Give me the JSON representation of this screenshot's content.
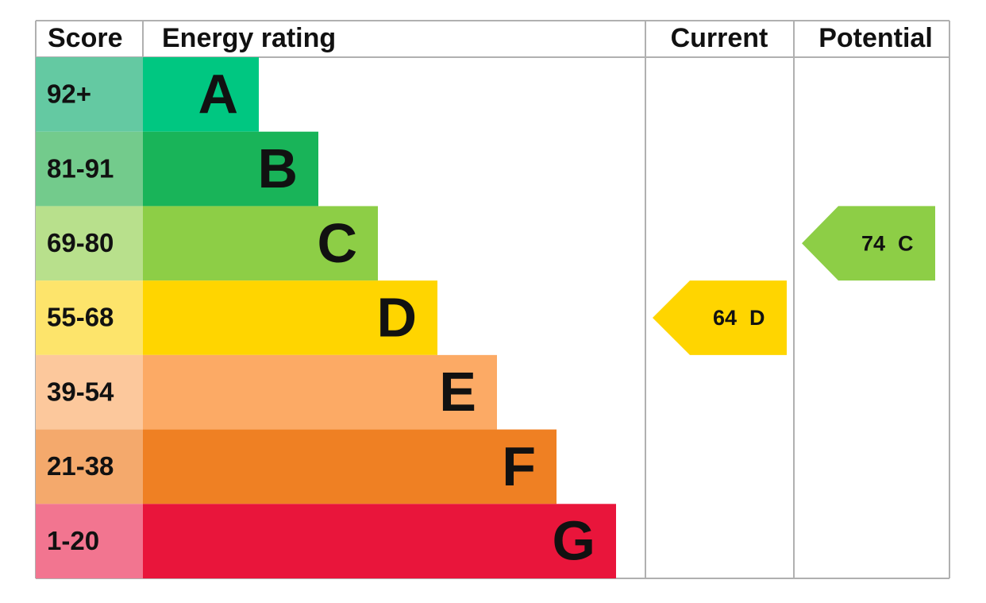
{
  "header": {
    "score": "Score",
    "energy_rating": "Energy rating",
    "current": "Current",
    "potential": "Potential"
  },
  "bands": [
    {
      "score": "92+",
      "letter": "A",
      "color": "#00c781",
      "score_color": "#64c9a2"
    },
    {
      "score": "81-91",
      "letter": "B",
      "color": "#19b459",
      "score_color": "#73cb8c"
    },
    {
      "score": "69-80",
      "letter": "C",
      "color": "#8dce46",
      "score_color": "#b8e08c"
    },
    {
      "score": "55-68",
      "letter": "D",
      "color": "#ffd500",
      "score_color": "#fde46b"
    },
    {
      "score": "39-54",
      "letter": "E",
      "color": "#fcaa65",
      "score_color": "#fcc89c"
    },
    {
      "score": "21-38",
      "letter": "F",
      "color": "#ef8023",
      "score_color": "#f4a96c"
    },
    {
      "score": "1-20",
      "letter": "G",
      "color": "#e9153b",
      "score_color": "#f27590"
    }
  ],
  "current": {
    "value": 64,
    "letter": "D"
  },
  "potential": {
    "value": 74,
    "letter": "C"
  }
}
